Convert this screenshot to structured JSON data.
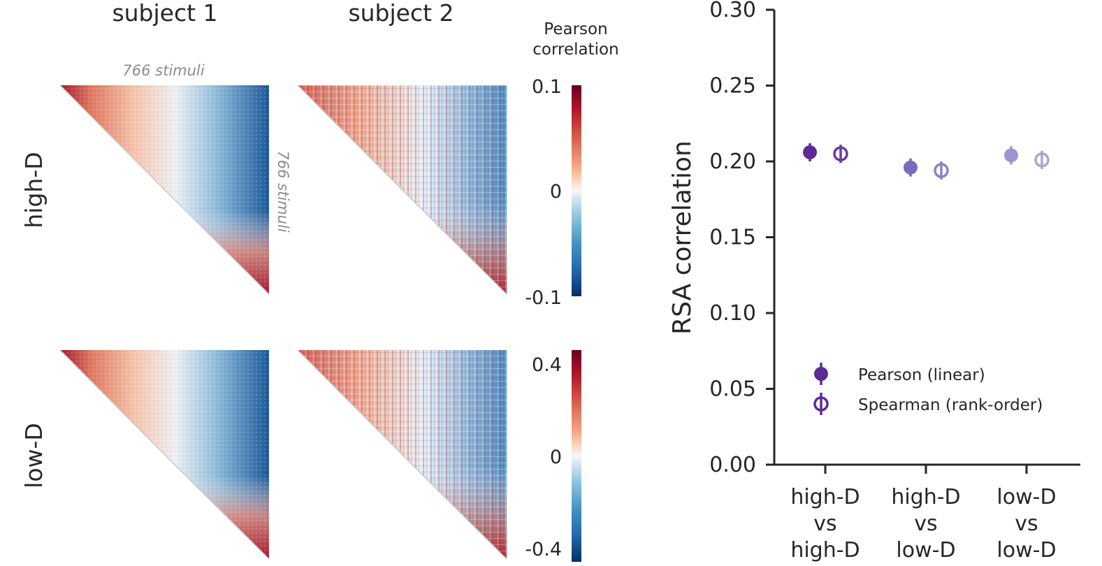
{
  "colors": {
    "cmap_pos": "#67001f",
    "cmap_neg": "#053061",
    "pearson_series": [
      "#5e2a98",
      "#7a6bbf",
      "#9d95cf"
    ],
    "spearman_series": [
      "#6a3aa5",
      "#8c80c9",
      "#aaa3d6"
    ],
    "axis": "#262626",
    "stimuli_label": "#8c8c8c"
  },
  "left_panel": {
    "column_titles": [
      "subject 1",
      "subject 2"
    ],
    "row_labels": [
      "high-D",
      "low-D"
    ],
    "stimuli_top": "766 stimuli",
    "stimuli_side": "766 stimuli",
    "colorbar_title_line1": "Pearson",
    "colorbar_title_line2": "correlation",
    "colorbar_top": {
      "ticks": [
        "0.1",
        "0",
        "-0.1"
      ],
      "vmin": -0.1,
      "vmax": 0.1
    },
    "colorbar_bottom": {
      "ticks": [
        "0.4",
        "0",
        "-0.4"
      ],
      "vmin": -0.4,
      "vmax": 0.4
    }
  },
  "chart_data": {
    "type": "scatter",
    "ylabel": "RSA correlation",
    "ylim": [
      0,
      0.3
    ],
    "yticks": [
      "0.00",
      "0.05",
      "0.10",
      "0.15",
      "0.20",
      "0.25",
      "0.30"
    ],
    "categories": [
      {
        "line1": "high-D",
        "line2": "vs",
        "line3": "high-D"
      },
      {
        "line1": "high-D",
        "line2": "vs",
        "line3": "low-D"
      },
      {
        "line1": "low-D",
        "line2": "vs",
        "line3": "low-D"
      }
    ],
    "series": [
      {
        "name": "Pearson (linear)",
        "marker": "filled",
        "values": [
          0.206,
          0.196,
          0.204
        ],
        "err": [
          0.006,
          0.006,
          0.006
        ]
      },
      {
        "name": "Spearman (rank-order)",
        "marker": "open",
        "values": [
          0.205,
          0.194,
          0.201
        ],
        "err": [
          0.006,
          0.006,
          0.006
        ]
      }
    ],
    "legend": "lower-center"
  }
}
